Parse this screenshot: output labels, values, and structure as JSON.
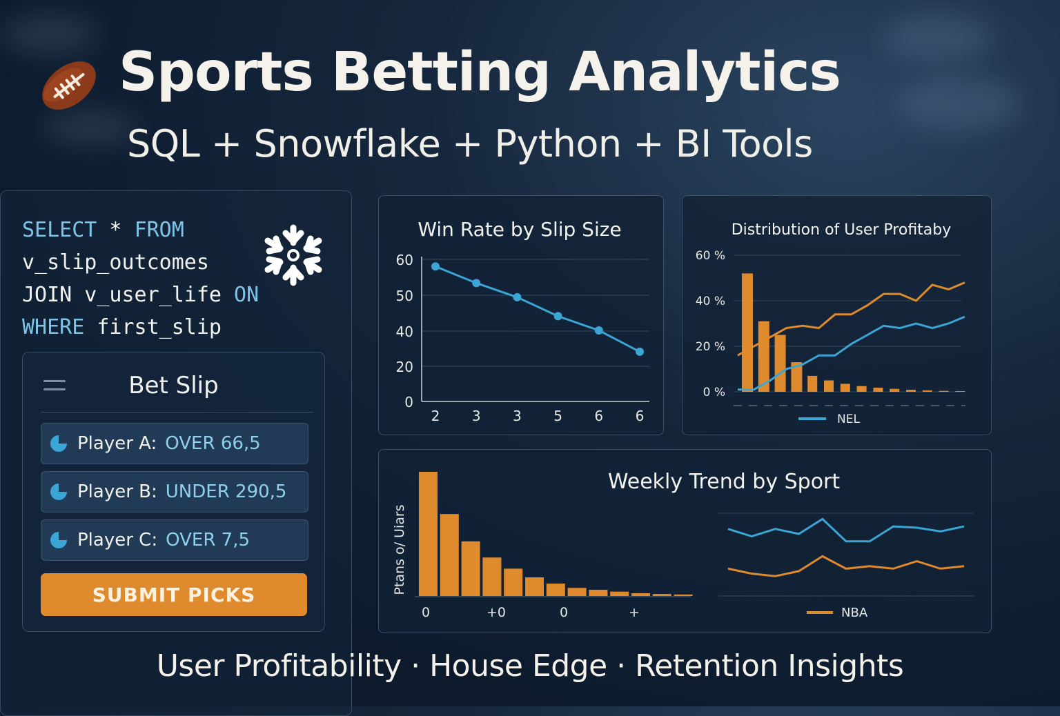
{
  "header": {
    "title": "Sports Betting Analytics",
    "subtitle": "SQL + Snowflake + Python + BI Tools",
    "icon": "football-icon"
  },
  "sql": {
    "line1_kw1": "SELECT",
    "line1_sym": " * ",
    "line1_kw2": "FROM",
    "line2": "v_slip_outcomes",
    "line3_id": "JOIN v_user_life ",
    "line3_kw": "ON",
    "line4_kw": "WHERE",
    "line4_id": " first_slip",
    "icon": "snowflake-icon"
  },
  "bet_slip": {
    "title": "Bet Slip",
    "picks": [
      {
        "player": "Player A:",
        "line": "OVER 66,5"
      },
      {
        "player": "Player B:",
        "line": "UNDER 290,5"
      },
      {
        "player": "Player C:",
        "line": "OVER 7,5"
      }
    ],
    "submit_label": "SUBMIT PICKS"
  },
  "footer": "User Profitability · House Edge · Retention Insights",
  "colors": {
    "accent_orange": "#e08a2e",
    "accent_blue": "#3ba6d6"
  },
  "chart_data": [
    {
      "type": "line",
      "title": "Win Rate by Slip Size",
      "x": [
        "2",
        "3",
        "3",
        "5",
        "6",
        "6"
      ],
      "values": [
        57,
        50,
        44,
        36,
        30,
        21
      ],
      "yticks": [
        "60",
        "50",
        "40",
        "20",
        "0"
      ],
      "ylim": [
        0,
        60
      ],
      "grid": true
    },
    {
      "type": "bar",
      "title": "Distribution of User Profitaby",
      "yticks": [
        "60 %",
        "40 %",
        "20 %",
        "0 %"
      ],
      "bars": [
        52,
        31,
        25,
        13,
        7,
        5,
        3.5,
        2.5,
        1.8,
        1.3,
        0.9,
        0.6,
        0.4,
        0.3
      ],
      "series": [
        {
          "values": [
            16,
            20,
            24,
            28,
            29,
            28,
            34,
            34,
            38,
            43,
            43,
            40,
            47,
            45,
            48
          ]
        },
        {
          "name": "NEL",
          "values": [
            1,
            1,
            5,
            10,
            12,
            16,
            16,
            21,
            25,
            29,
            28,
            30,
            28,
            30,
            33
          ]
        }
      ],
      "ylim": [
        0,
        60
      ],
      "legend": "bottom"
    },
    {
      "type": "bar",
      "title": "Weekly Trend by Sport",
      "ylabel": "Ptans o/ Uiars",
      "xticks": [
        "0",
        "+0",
        "0",
        "+"
      ],
      "bars": [
        100,
        66,
        44,
        31,
        22,
        15,
        10,
        6.5,
        5,
        3.5,
        2.2,
        1.6,
        1.2
      ],
      "series": [
        {
          "values": [
            54,
            48,
            54,
            50,
            62,
            44,
            44,
            56,
            55,
            52,
            56
          ]
        },
        {
          "name": "NBA",
          "values": [
            22,
            18,
            16,
            20,
            32,
            22,
            24,
            22,
            28,
            22,
            24
          ]
        }
      ],
      "legend": "bottom"
    }
  ]
}
